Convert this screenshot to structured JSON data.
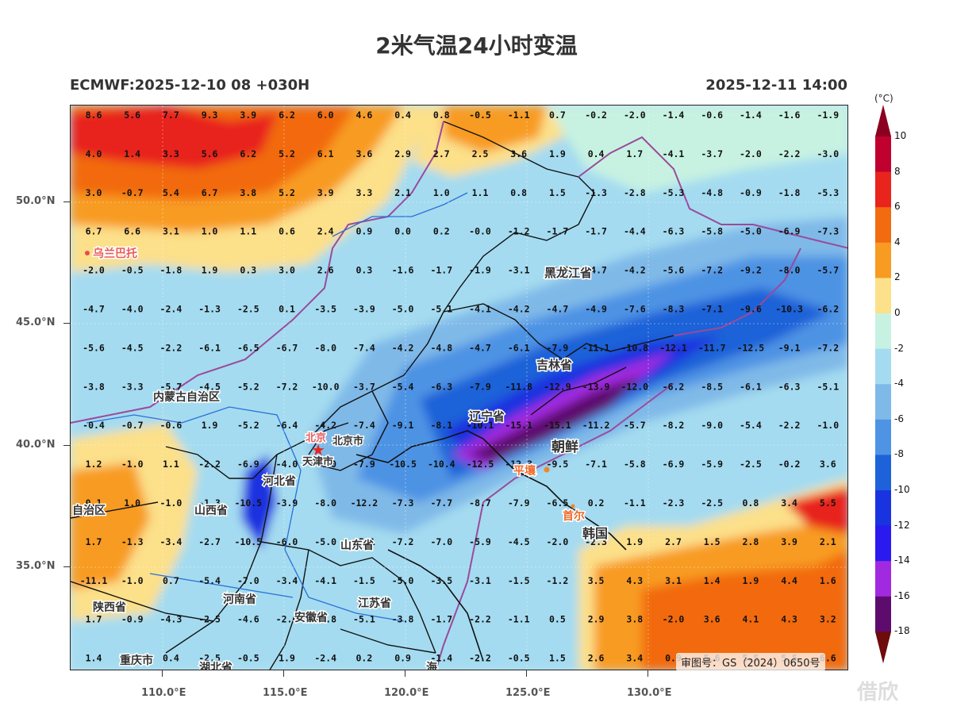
{
  "title": "2米气温24小时变温",
  "subtitle_left": "ECMWF:2025-12-10 08 +030H",
  "subtitle_right": "2025-12-11 14:00",
  "lat_ticks": [
    "50.0°N",
    "45.0°N",
    "40.0°N",
    "35.0°N"
  ],
  "lon_ticks": [
    "110.0°E",
    "115.0°E",
    "120.0°E",
    "125.0°E",
    "130.0°E"
  ],
  "colorbar": {
    "unit": "(°C)",
    "labels": [
      "10",
      "8",
      "6",
      "4",
      "2",
      "0",
      "-2",
      "-4",
      "-6",
      "-8",
      "-10",
      "-12",
      "-14",
      "-16",
      "-18"
    ],
    "colors": [
      "#8b0021",
      "#c0002e",
      "#e8241c",
      "#f26b10",
      "#f89b22",
      "#fce08a",
      "#c7f2e1",
      "#a4dbf0",
      "#7fb9e8",
      "#4e93e4",
      "#1d62d8",
      "#1a33e0",
      "#2a1af0",
      "#a12ae0",
      "#5d0c6e",
      "#6e0b0b"
    ]
  },
  "place_labels": {
    "ulaanbaatar": "乌兰巴托",
    "heilongjiang": "黑龙江省",
    "inner_mongolia": "内蒙古自治区",
    "jilin": "吉林省",
    "liaoning": "辽宁省",
    "north_korea": "朝鲜",
    "pyongyang": "平壤",
    "beijing": "北京",
    "beijing_city": "北京市",
    "tianjin": "天津市",
    "hebei": "河北省",
    "shanxi": "山西省",
    "shandong": "山东省",
    "henan": "河南省",
    "shaanxi": "陕西省",
    "anhui": "安徽省",
    "jiangsu": "江苏省",
    "hubei": "湖北省",
    "chongqing": "重庆市",
    "seoul": "首尔",
    "south_korea": "韩国",
    "region_left": "自治区",
    "sea": "海",
    "review_no": "审图号：GS（2024）0650号",
    "watermark": "借欣"
  },
  "grid_values": [
    [
      "8.6",
      "5.6",
      "7.7",
      "9.3",
      "3.9",
      "6.2",
      "6.0",
      "4.6",
      "0.4",
      "0.8",
      "-0.5",
      "-1.1",
      "0.7",
      "-0.2",
      "-2.0",
      "-1.4",
      "-0.6",
      "-1.4",
      "-1.6",
      "-1.9"
    ],
    [
      "4.0",
      "1.4",
      "3.3",
      "5.6",
      "6.2",
      "5.2",
      "6.1",
      "3.6",
      "2.9",
      "2.7",
      "2.5",
      "3.6",
      "1.9",
      "0.4",
      "1.7",
      "-4.1",
      "-3.7",
      "-2.0",
      "-2.2",
      "-3.0"
    ],
    [
      "3.0",
      "-0.7",
      "5.4",
      "6.7",
      "3.8",
      "5.2",
      "3.9",
      "3.3",
      "2.1",
      "1.0",
      "1.1",
      "0.8",
      "1.5",
      "-1.3",
      "-2.8",
      "-5.3",
      "-4.8",
      "-0.9",
      "-1.8",
      "-5.3"
    ],
    [
      "6.7",
      "6.6",
      "3.1",
      "1.0",
      "1.1",
      "0.6",
      "2.4",
      "0.9",
      "0.0",
      "0.2",
      "-0.0",
      "-1.2",
      "-1.7",
      "-1.7",
      "-4.4",
      "-6.3",
      "-5.8",
      "-5.0",
      "-6.9",
      "-7.3"
    ],
    [
      "-2.0",
      "-0.5",
      "-1.8",
      "1.9",
      "0.3",
      "3.0",
      "2.6",
      "0.3",
      "-1.6",
      "-1.7",
      "-1.9",
      "-3.1",
      "-4.7",
      "-4.7",
      "-4.2",
      "-5.6",
      "-7.2",
      "-9.2",
      "-8.0",
      "-5.7"
    ],
    [
      "-4.7",
      "-4.0",
      "-2.4",
      "-1.3",
      "-2.5",
      "0.1",
      "-3.5",
      "-3.9",
      "-5.0",
      "-5.1",
      "-4.1",
      "-4.2",
      "-4.7",
      "-4.9",
      "-7.6",
      "-8.3",
      "-7.1",
      "-9.6",
      "-10.3",
      "-6.2"
    ],
    [
      "-5.6",
      "-4.5",
      "-2.2",
      "-6.1",
      "-6.5",
      "-6.7",
      "-8.0",
      "-7.4",
      "-4.2",
      "-4.8",
      "-4.7",
      "-6.1",
      "-7.9",
      "-11.1",
      "-10.8",
      "-12.1",
      "-11.7",
      "-12.5",
      "-9.1",
      "-7.2"
    ],
    [
      "-3.8",
      "-3.3",
      "-5.7",
      "-4.5",
      "-5.2",
      "-7.2",
      "-10.0",
      "-3.7",
      "-5.4",
      "-6.3",
      "-7.9",
      "-11.8",
      "-12.9",
      "-13.9",
      "-12.0",
      "-6.2",
      "-8.5",
      "-6.1",
      "-6.3",
      "-5.1"
    ],
    [
      "-0.4",
      "-0.7",
      "-0.6",
      "1.9",
      "-5.2",
      "-6.4",
      "-4.2",
      "-7.4",
      "-9.1",
      "-8.1",
      "-10.1",
      "-15.1",
      "-15.1",
      "-11.2",
      "-5.7",
      "-8.2",
      "-9.0",
      "-5.4",
      "-2.2",
      "-1.0"
    ],
    [
      "1.2",
      "-1.0",
      "1.1",
      "-2.2",
      "-6.9",
      "-4.0",
      "-4.0",
      "-7.9",
      "-10.5",
      "-10.4",
      "-12.5",
      "-12.3",
      "-9.5",
      "-7.1",
      "-5.8",
      "-6.9",
      "-5.9",
      "-2.5",
      "-0.2",
      "3.6"
    ],
    [
      "0.1",
      "1.0",
      "-1.0",
      "-1.3",
      "-10.5",
      "-3.9",
      "-8.0",
      "-12.2",
      "-7.3",
      "-7.7",
      "-8.7",
      "-7.9",
      "-6.5",
      "0.2",
      "-1.1",
      "-2.3",
      "-2.5",
      "0.8",
      "3.4",
      "5.5"
    ],
    [
      "1.7",
      "-1.3",
      "-3.4",
      "-2.7",
      "-10.5",
      "-6.0",
      "-5.0",
      "-5.1",
      "-7.2",
      "-7.0",
      "-5.9",
      "-4.5",
      "-2.0",
      "-2.3",
      "1.9",
      "2.7",
      "1.5",
      "2.8",
      "3.9",
      "2.1"
    ],
    [
      "-11.1",
      "-1.0",
      "0.7",
      "-5.4",
      "-7.0",
      "-3.4",
      "-4.1",
      "-1.5",
      "-5.0",
      "-3.5",
      "-3.1",
      "-1.5",
      "-1.2",
      "3.5",
      "4.3",
      "3.1",
      "1.4",
      "1.9",
      "4.4",
      "1.6"
    ],
    [
      "1.7",
      "-0.9",
      "-4.3",
      "-2.5",
      "-4.6",
      "-2.6",
      "-2.8",
      "-5.1",
      "-3.8",
      "-1.7",
      "-2.2",
      "-1.1",
      "0.5",
      "2.9",
      "3.8",
      "-2.0",
      "3.6",
      "4.1",
      "4.3",
      "3.2"
    ],
    [
      "1.4",
      "1.4",
      "0.4",
      "-2.5",
      "-0.5",
      "1.9",
      "-2.4",
      "0.2",
      "0.9",
      "-1.4",
      "-2.2",
      "-0.5",
      "1.5",
      "2.6",
      "3.4",
      "0.9",
      "5.6",
      "5.5",
      "5.5",
      "6.6"
    ]
  ]
}
